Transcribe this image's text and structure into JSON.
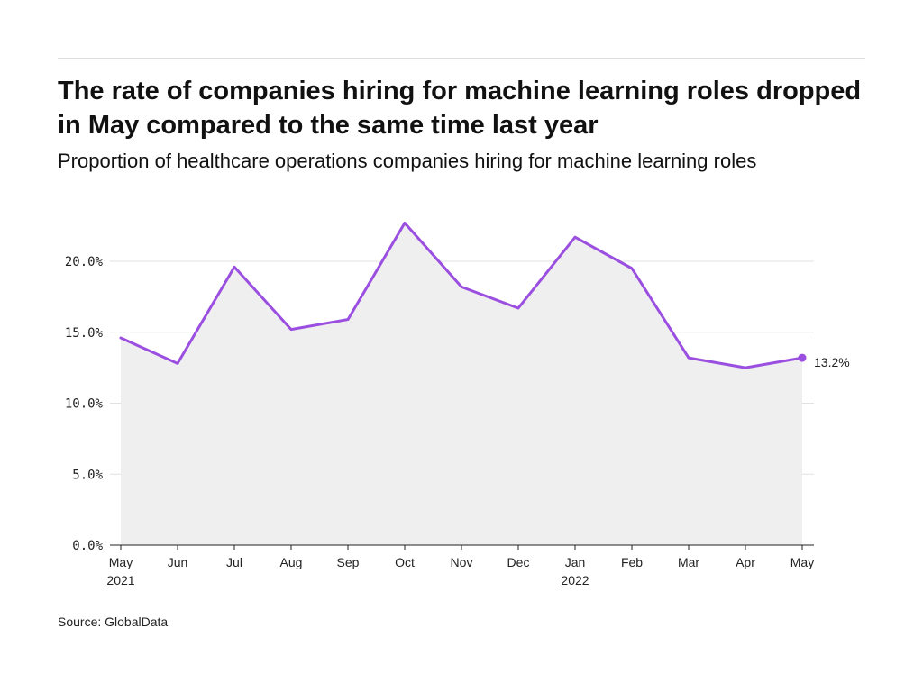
{
  "header": {
    "title": "The rate of companies hiring for machine learning roles dropped in May compared to the same time last year",
    "subtitle": "Proportion of healthcare operations companies hiring for machine learning roles"
  },
  "footer": {
    "source": "Source: GlobalData"
  },
  "colors": {
    "line": "#9b4fe0",
    "area": "#efefef",
    "grid": "#e2e2e2",
    "axis": "#222222"
  },
  "chart_data": {
    "type": "line",
    "title": "The rate of companies hiring for machine learning roles dropped in May compared to the same time last year",
    "subtitle": "Proportion of healthcare operations companies hiring for machine learning roles",
    "xlabel": "",
    "ylabel": "",
    "categories": [
      "May",
      "Jun",
      "Jul",
      "Aug",
      "Sep",
      "Oct",
      "Nov",
      "Dec",
      "Jan",
      "Feb",
      "Mar",
      "Apr",
      "May"
    ],
    "year_labels": [
      "2021",
      "",
      "",
      "",
      "",
      "",
      "",
      "",
      "2022",
      "",
      "",
      "",
      ""
    ],
    "series": [
      {
        "name": "Healthcare operations",
        "values": [
          14.6,
          12.8,
          19.6,
          15.2,
          15.9,
          22.7,
          18.2,
          16.7,
          21.7,
          19.5,
          13.2,
          12.5,
          13.2
        ]
      }
    ],
    "y_ticks": [
      0,
      5,
      10,
      15,
      20
    ],
    "y_tick_labels": [
      "0.0%",
      "5.0%",
      "10.0%",
      "15.0%",
      "20.0%"
    ],
    "ylim": [
      0,
      24
    ],
    "grid": true,
    "end_label": "13.2%",
    "area_fill": true
  }
}
